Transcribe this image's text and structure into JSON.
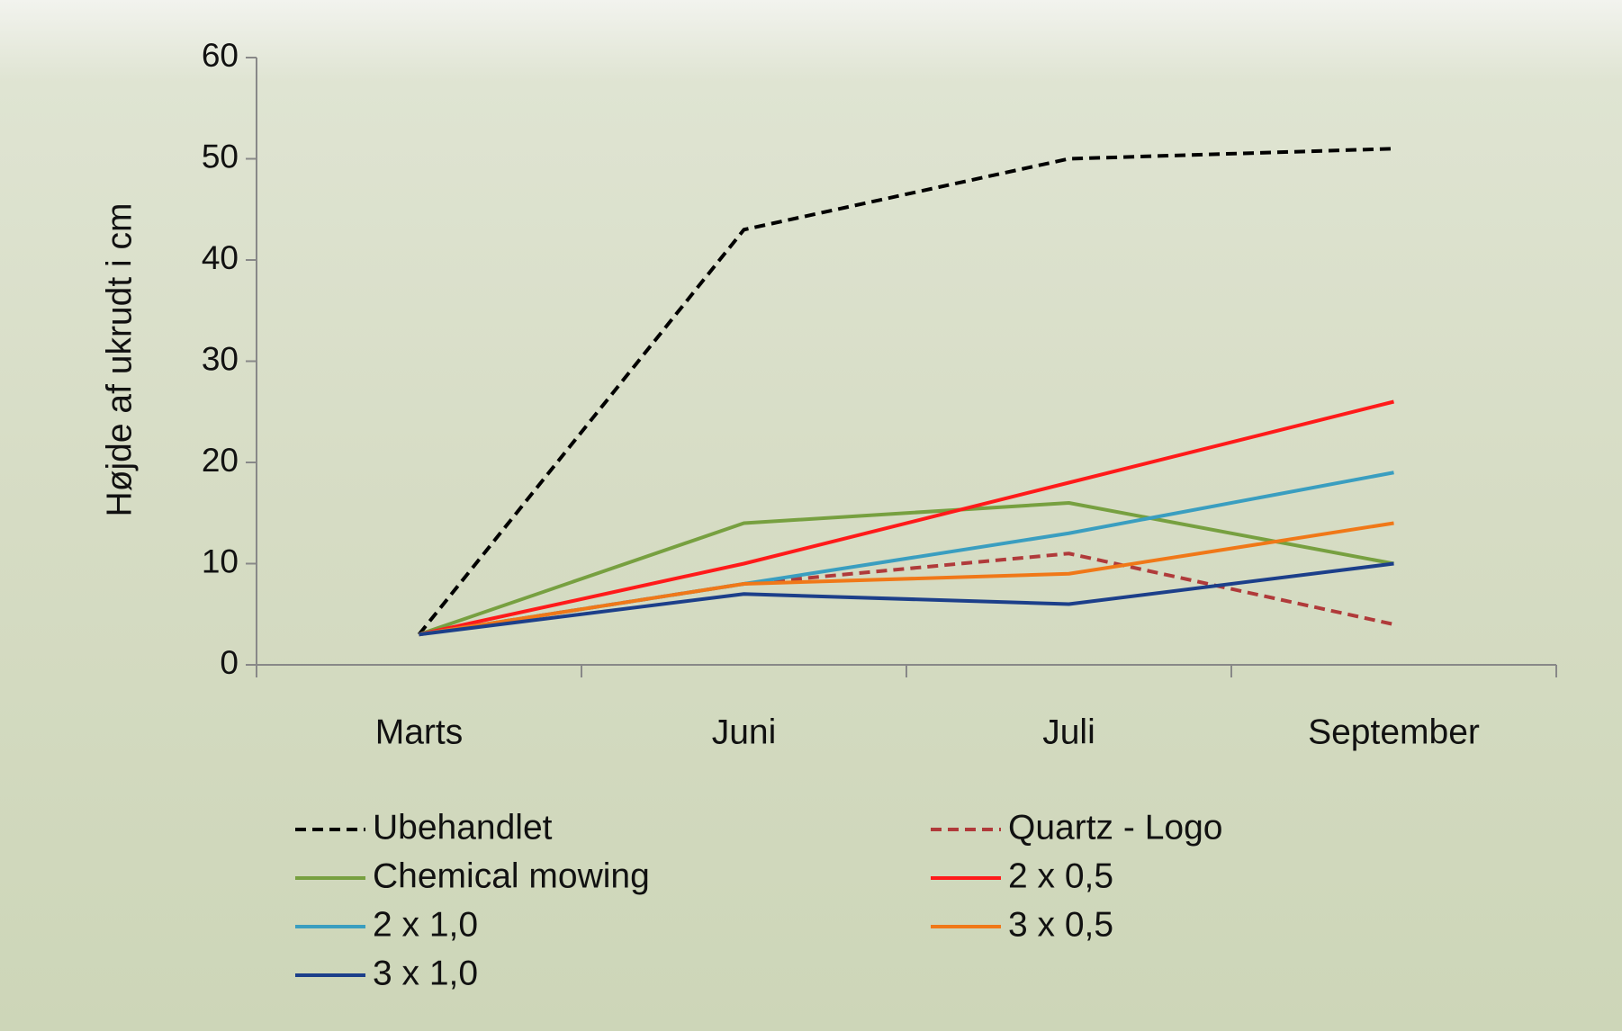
{
  "chart_data": {
    "type": "line",
    "y_label": "Højde af ukrudt i cm",
    "categories": [
      "Marts",
      "Juni",
      "Juli",
      "September"
    ],
    "series": [
      {
        "name": "Ubehandlet",
        "color": "#000000",
        "dashed": true,
        "values": [
          3,
          43,
          50,
          51
        ]
      },
      {
        "name": "Quartz - Logo",
        "color": "#b03a3a",
        "dashed": true,
        "values": [
          3,
          8,
          11,
          4
        ]
      },
      {
        "name": "Chemical mowing",
        "color": "#77a040",
        "values": [
          3,
          14,
          16,
          10
        ]
      },
      {
        "name": "2 x 0,5",
        "color": "#ff1a1a",
        "values": [
          3,
          10,
          18,
          26
        ]
      },
      {
        "name": "2 x 1,0",
        "color": "#3a9ec0",
        "values": [
          3,
          8,
          13,
          19
        ]
      },
      {
        "name": "3 x 0,5",
        "color": "#f07818",
        "values": [
          3,
          8,
          9,
          14
        ]
      },
      {
        "name": "3 x 1,0",
        "color": "#1c3f8a",
        "values": [
          3,
          7,
          6,
          10
        ]
      }
    ],
    "ylim": [
      0,
      60
    ],
    "yticks": [
      0,
      10,
      20,
      30,
      40,
      50,
      60
    ],
    "grid": false
  }
}
